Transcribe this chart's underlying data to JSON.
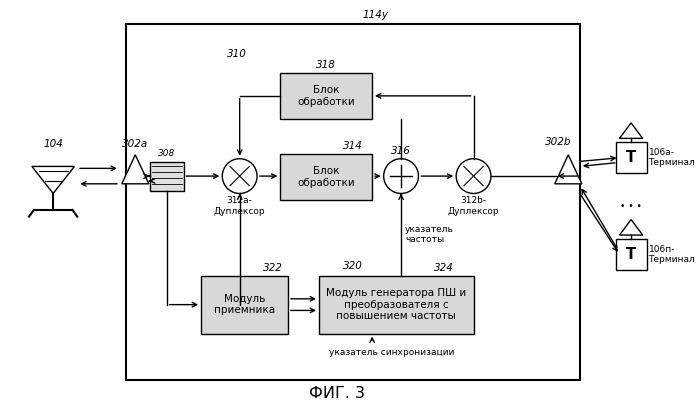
{
  "title": "ФИГ. 3",
  "label_114y": "114y",
  "label_310": "310",
  "label_318": "318",
  "label_314": "314",
  "label_316": "316",
  "label_308": "308",
  "label_312a": "312a-\nДуплексор",
  "label_312b": "312b-\nДуплексор",
  "label_320": "320",
  "label_322": "322",
  "label_324": "324",
  "label_302a": "302a",
  "label_302b": "302b",
  "label_104": "104",
  "label_106a": "106a-\nТерминал",
  "label_106n": "106п-\nТерминал",
  "box318_text": "Блок\nобработки",
  "box314_text": "Блок\nобработки",
  "box322_text": "Модуль\nприемника",
  "box324_text": "Модуль генератора ПШ и\nпреобразователя с\nповышением частоты",
  "label_freq": "указатель\nчастоты",
  "label_sync": "указатель синхронизации",
  "bg_color": "#ffffff",
  "box_color": "#d0d0d0",
  "line_color": "#000000",
  "text_color": "#000000",
  "font_size": 7.5
}
